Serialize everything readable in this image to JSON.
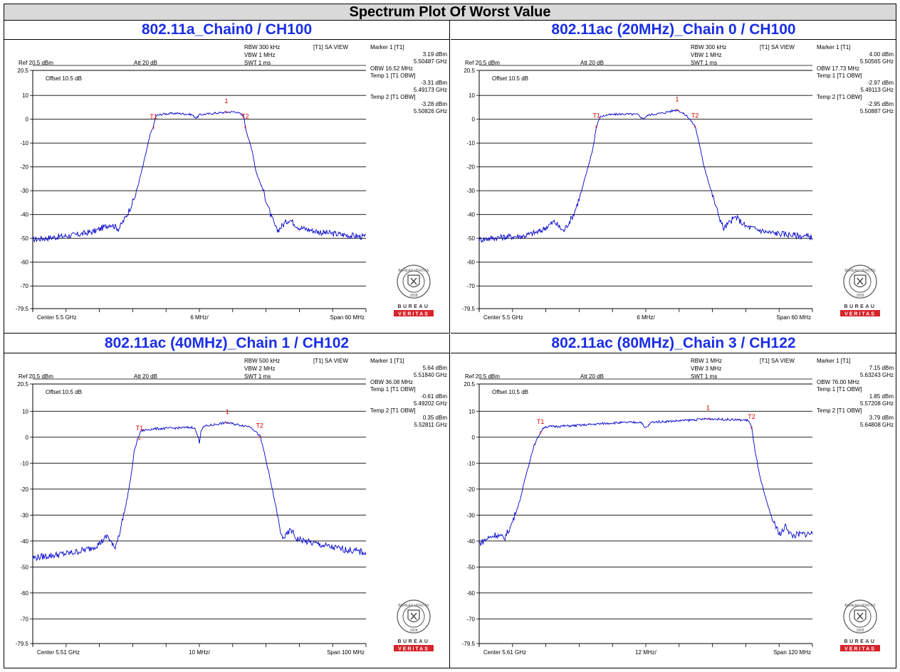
{
  "page_title": "Spectrum Plot Of Worst Value",
  "colors": {
    "trace": "#0000cc",
    "title": "#1a2ee6",
    "marker": "#e00000",
    "logo_red": "#d8232a"
  },
  "logo": {
    "top_text": "BUREAU VERITAS",
    "year": "1828",
    "word1": "BUREAU",
    "word2": "VERITAS",
    "icon": "bureau-veritas-seal-icon"
  },
  "chart_data": [
    {
      "type": "line",
      "title": "802.11a_Chain0 / CH100",
      "settings": {
        "rbw": "RBW 300 kHz",
        "vbw": "VBW 1 MHz",
        "swt": "SWT 1 ms",
        "view": "[T1] SA VIEW",
        "ref": "Ref 20.5 dBm",
        "att": "Att  20 dB",
        "offset": "Offset 10.5 dB"
      },
      "readout": [
        "Marker 1 [T1]",
        "3.19 dBm",
        "5.50487 GHz",
        "OBW    16.52 MHz",
        "Temp 1 [T1 OBW]",
        "-3.31 dBm",
        "5.49173 GHz",
        "Temp 2 [T1 OBW]",
        "-3.28 dBm",
        "5.50826 GHz"
      ],
      "ylim": [
        -79.5,
        20.5
      ],
      "yticks": [
        "20.5",
        "10",
        "0",
        "-10",
        "-20",
        "-30",
        "-40",
        "-50",
        "-60",
        "-70",
        "-79.5"
      ],
      "xlim": [
        5.47,
        5.53
      ],
      "x_center": "Center 5.5 GHz",
      "x_div": "6 MHz/",
      "x_span": "Span 60 MHz",
      "markers": [
        {
          "label": "T1",
          "x": 5.49173,
          "y": -3.31
        },
        {
          "label": "1",
          "x": 5.50487,
          "y": 3.19
        },
        {
          "label": "T2",
          "x": 5.50826,
          "y": -3.28
        }
      ],
      "trace": {
        "x": [
          5.47,
          5.474,
          5.478,
          5.4812,
          5.484,
          5.4855,
          5.487,
          5.4885,
          5.4898,
          5.4906,
          5.4912,
          5.4917,
          5.4922,
          5.4935,
          5.496,
          5.4985,
          5.4995,
          5.5,
          5.5005,
          5.503,
          5.5065,
          5.508,
          5.5083,
          5.5088,
          5.5095,
          5.5102,
          5.5115,
          5.5128,
          5.514,
          5.5152,
          5.5162,
          5.518,
          5.522,
          5.526,
          5.53
        ],
        "y": [
          -50.5,
          -49.5,
          -48.5,
          -47,
          -44,
          -46,
          -40,
          -32,
          -20,
          -12,
          -6,
          -3.3,
          1.5,
          2.2,
          2.5,
          2.0,
          0.5,
          1.8,
          2.0,
          2.6,
          3.2,
          1.5,
          -3.3,
          -8,
          -13,
          -22,
          -30,
          -40,
          -47,
          -44,
          -42,
          -45.5,
          -47.5,
          -48.5,
          -49.5
        ]
      }
    },
    {
      "type": "line",
      "title": "802.11ac (20MHz)_Chain 0 / CH100",
      "settings": {
        "rbw": "RBW 300 kHz",
        "vbw": "VBW 1 MHz",
        "swt": "SWT 1 ms",
        "view": "[T1] SA VIEW",
        "ref": "Ref 20.5 dBm",
        "att": "Att  20 dB",
        "offset": "Offset 10.5 dB"
      },
      "readout": [
        "Marker 1 [T1]",
        "4.00 dBm",
        "5.50565 GHz",
        "OBW    17.73 MHz",
        "Temp 1 [T1 OBW]",
        "-2.97 dBm",
        "5.49113 GHz",
        "Temp 2 [T1 OBW]",
        "-2.95 dBm",
        "5.50887 GHz"
      ],
      "ylim": [
        -79.5,
        20.5
      ],
      "yticks": [
        "20.5",
        "10",
        "0",
        "-10",
        "-20",
        "-30",
        "-40",
        "-50",
        "-60",
        "-70",
        "-79.5"
      ],
      "xlim": [
        5.47,
        5.53
      ],
      "x_center": "Center 5.5 GHz",
      "x_div": "6 MHz/",
      "x_span": "Span 60 MHz",
      "markers": [
        {
          "label": "T1",
          "x": 5.49113,
          "y": -2.97
        },
        {
          "label": "1",
          "x": 5.50565,
          "y": 4.0
        },
        {
          "label": "T2",
          "x": 5.50887,
          "y": -2.95
        }
      ],
      "trace": {
        "x": [
          5.47,
          5.474,
          5.478,
          5.481,
          5.4835,
          5.4852,
          5.487,
          5.4882,
          5.4895,
          5.4905,
          5.4911,
          5.4918,
          5.493,
          5.496,
          5.4985,
          5.4995,
          5.5,
          5.5005,
          5.503,
          5.5057,
          5.5075,
          5.5089,
          5.5095,
          5.5103,
          5.5115,
          5.5128,
          5.514,
          5.5152,
          5.5162,
          5.518,
          5.522,
          5.526,
          5.53
        ],
        "y": [
          -50.5,
          -49.5,
          -49,
          -47,
          -43,
          -47,
          -40,
          -32,
          -21,
          -12,
          -3.0,
          1.0,
          1.8,
          2.2,
          2.0,
          0.2,
          1.0,
          1.8,
          2.6,
          4.0,
          1.2,
          -3.0,
          -9,
          -18,
          -28,
          -38,
          -46,
          -43,
          -41,
          -45,
          -47.5,
          -48.5,
          -49.5
        ]
      }
    },
    {
      "type": "line",
      "title": "802.11ac (40MHz)_Chain 1 / CH102",
      "settings": {
        "rbw": "RBW 500 kHz",
        "vbw": "VBW 2 MHz",
        "swt": "SWT 1 ms",
        "view": "[T1] SA VIEW",
        "ref": "Ref 20.5 dBm",
        "att": "Att  20 dB",
        "offset": "Offset 10.5 dB"
      },
      "readout": [
        "Marker 1 [T1]",
        "5.64 dBm",
        "5.51840 GHz",
        "OBW    36.08 MHz",
        "Temp 1 [T1 OBW]",
        "-0.61 dBm",
        "5.49202 GHz",
        "Temp 2 [T1 OBW]",
        "0.35 dBm",
        "5.52811 GHz"
      ],
      "ylim": [
        -79.5,
        20.5
      ],
      "yticks": [
        "20.5",
        "10",
        "0",
        "-10",
        "-20",
        "-30",
        "-40",
        "-50",
        "-60",
        "-70",
        "-79.5"
      ],
      "xlim": [
        5.46,
        5.56
      ],
      "x_center": "Center 5.51 GHz",
      "x_div": "10 MHz/",
      "x_span": "Span 100 MHz",
      "markers": [
        {
          "label": "T1",
          "x": 5.49202,
          "y": -0.61
        },
        {
          "label": "1",
          "x": 5.5184,
          "y": 5.64
        },
        {
          "label": "T2",
          "x": 5.52811,
          "y": 0.35
        }
      ],
      "trace": {
        "x": [
          5.46,
          5.466,
          5.472,
          5.477,
          5.48,
          5.4825,
          5.4845,
          5.486,
          5.488,
          5.4895,
          5.4905,
          5.4915,
          5.4925,
          5.496,
          5.502,
          5.5085,
          5.5095,
          5.51,
          5.5105,
          5.5115,
          5.518,
          5.5255,
          5.5282,
          5.5295,
          5.5312,
          5.533,
          5.5345,
          5.5358,
          5.5375,
          5.539,
          5.543,
          5.55,
          5.56
        ],
        "y": [
          -46.5,
          -45.5,
          -44.5,
          -43,
          -41,
          -38,
          -43,
          -37,
          -26,
          -15,
          -5,
          -0.6,
          2.5,
          3.2,
          3.5,
          3.8,
          0.5,
          -2,
          2.8,
          4.2,
          5.6,
          4.0,
          0.4,
          -6,
          -16,
          -27,
          -38,
          -38.5,
          -35.5,
          -39,
          -40.5,
          -42.5,
          -44.5
        ]
      }
    },
    {
      "type": "line",
      "title": "802.11ac (80MHz)_Chain 3 / CH122",
      "settings": {
        "rbw": "RBW 1 MHz",
        "vbw": "VBW 3 MHz",
        "swt": "SWT 1 ms",
        "view": "[T1] SA VIEW",
        "ref": "Ref 20.5 dBm",
        "att": "Att  20 dB",
        "offset": "Offset 10.5 dB"
      },
      "readout": [
        "Marker 1 [T1]",
        "7.15 dBm",
        "5.63243 GHz",
        "OBW    76.00 MHz",
        "Temp 1 [T1 OBW]",
        "1.85 dBm",
        "5.57208 GHz",
        "Temp 2 [T1 OBW]",
        "3.79 dBm",
        "5.64808 GHz"
      ],
      "ylim": [
        -79.5,
        20.5
      ],
      "yticks": [
        "20.5",
        "10",
        "0",
        "-10",
        "-20",
        "-30",
        "-40",
        "-50",
        "-60",
        "-70",
        "-79.5"
      ],
      "xlim": [
        5.55,
        5.67
      ],
      "x_center": "Center 5.61 GHz",
      "x_div": "12 MHz/",
      "x_span": "Span 120 MHz",
      "markers": [
        {
          "label": "T1",
          "x": 5.57208,
          "y": 1.85
        },
        {
          "label": "1",
          "x": 5.63243,
          "y": 7.15
        },
        {
          "label": "T2",
          "x": 5.64808,
          "y": 3.79
        }
      ],
      "trace": {
        "x": [
          5.55,
          5.553,
          5.556,
          5.559,
          5.5615,
          5.5645,
          5.567,
          5.5695,
          5.5712,
          5.572,
          5.5735,
          5.585,
          5.598,
          5.6085,
          5.6095,
          5.6105,
          5.612,
          5.625,
          5.6324,
          5.64,
          5.647,
          5.6481,
          5.649,
          5.651,
          5.6535,
          5.656,
          5.6585,
          5.6605,
          5.6625,
          5.6645,
          5.67
        ],
        "y": [
          -41,
          -39,
          -37.5,
          -39,
          -34,
          -25,
          -14,
          -4,
          0,
          1.8,
          4.0,
          4.5,
          5.5,
          5.8,
          3.5,
          4.0,
          5.8,
          6.5,
          7.1,
          6.8,
          6.5,
          3.8,
          -3,
          -15,
          -25,
          -33,
          -37.5,
          -34,
          -38,
          -37.5,
          -37
        ]
      }
    }
  ]
}
